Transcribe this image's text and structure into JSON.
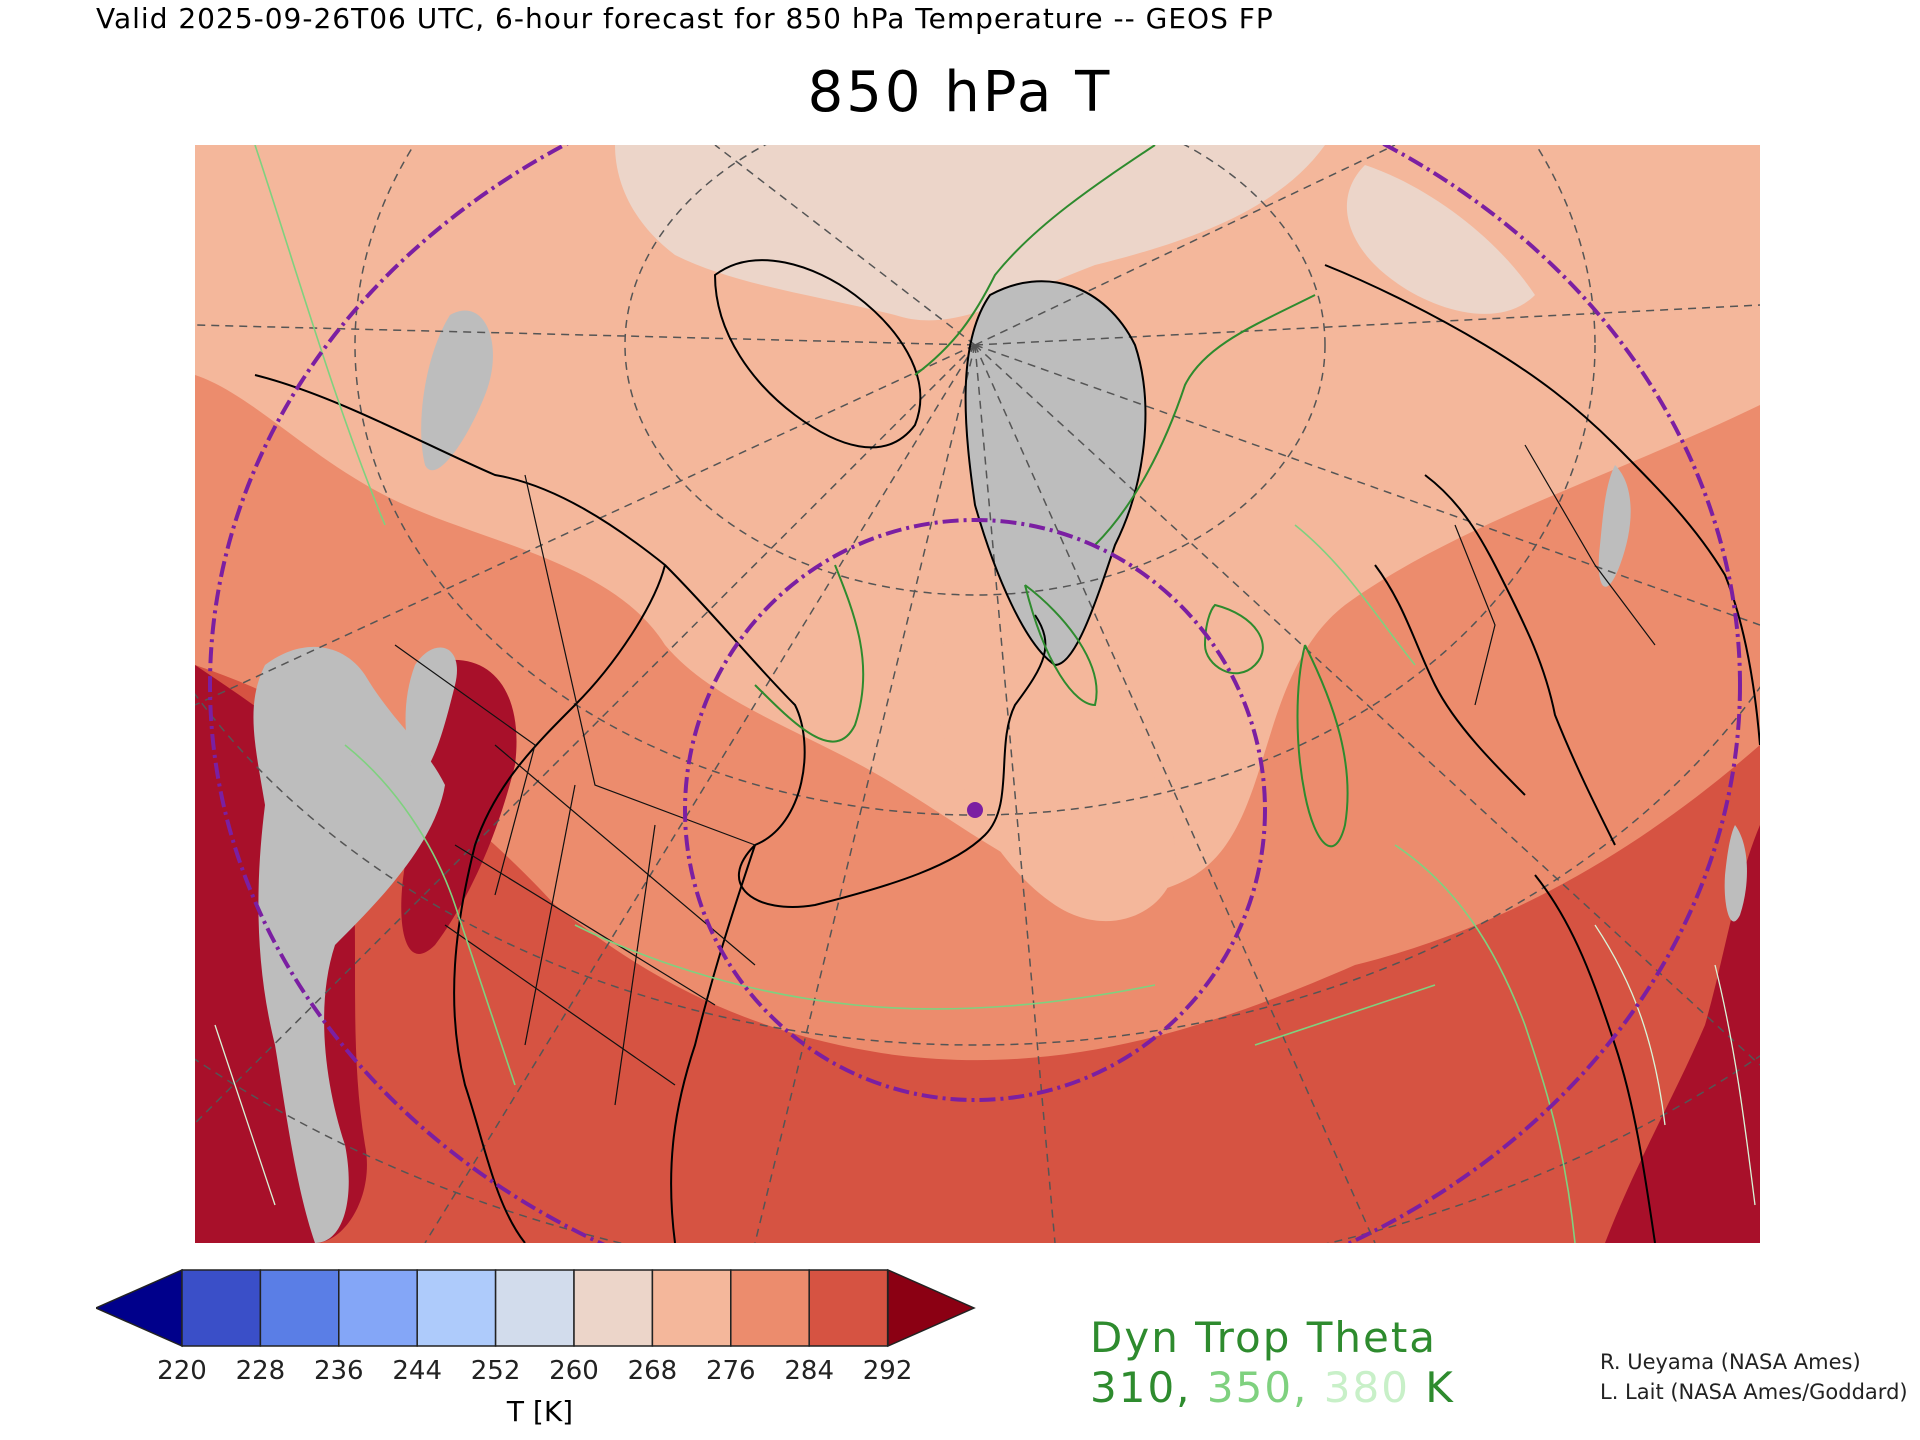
{
  "header": {
    "valid_line": "Valid 2025-09-26T06 UTC, 6-hour forecast for 850 hPa Temperature -- GEOS FP",
    "title": "850 hPa T"
  },
  "colorbar": {
    "ticks": [
      "220",
      "228",
      "236",
      "244",
      "252",
      "260",
      "268",
      "276",
      "284",
      "292"
    ],
    "unit_label": "T [K]",
    "colors": {
      "below_min": "#00008b",
      "bins": [
        "#3a4fc8",
        "#5a7ee6",
        "#84a6f7",
        "#aecbfb",
        "#d2dcec",
        "#ecd5c9",
        "#f4b79b",
        "#ec8c6d",
        "#d65342"
      ],
      "above_max": "#8b0013"
    }
  },
  "map": {
    "projection": "north polar stereographic",
    "missing_color": "#bdbdbd",
    "coastline_color": "#000000",
    "graticule_color": "#555555",
    "range_ring_color": "#7b1fa2",
    "center_marker_color": "#7b1fa2",
    "contour_colors": [
      "#2e8b2e",
      "#7fd17f",
      "#c8f0c8"
    ]
  },
  "legend": {
    "title": "Dyn Trop Theta",
    "values": [
      {
        "text": "310,",
        "color": "#2e8b2e"
      },
      {
        "text": "350,",
        "color": "#7fd17f"
      },
      {
        "text": "380",
        "color": "#c8f0c8"
      },
      {
        "text": "K",
        "color": "#2e8b2e"
      }
    ]
  },
  "credits": [
    "R. Ueyama (NASA Ames)",
    "L. Lait (NASA Ames/Goddard)"
  ]
}
